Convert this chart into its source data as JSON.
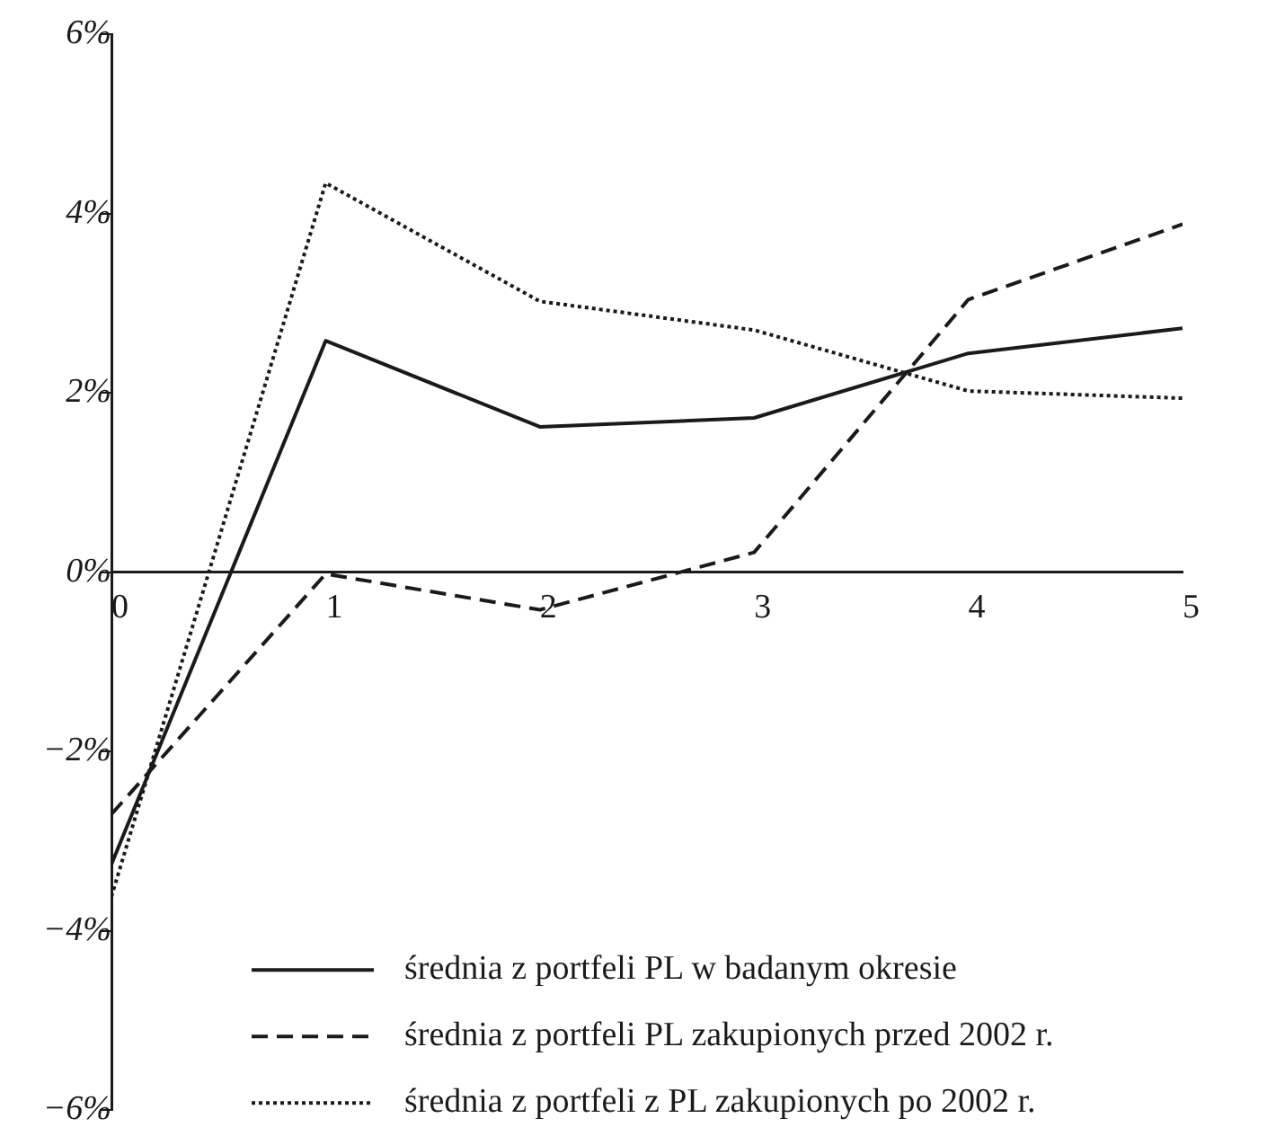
{
  "chart_data": {
    "type": "line",
    "x": [
      0,
      1,
      2,
      3,
      4,
      5
    ],
    "xlim": [
      0,
      5
    ],
    "xticks": [
      0,
      1,
      2,
      3,
      4,
      5
    ],
    "ylim": [
      -6,
      6
    ],
    "yticks": [
      {
        "value": -6,
        "label": "−6%"
      },
      {
        "value": -4,
        "label": "−4%"
      },
      {
        "value": -2,
        "label": "−2%"
      },
      {
        "value": 0,
        "label": "0%"
      },
      {
        "value": 2,
        "label": "2%"
      },
      {
        "value": 4,
        "label": "4%"
      },
      {
        "value": 6,
        "label": "6%"
      }
    ],
    "grid": false,
    "legend": "bottom right",
    "marker": "none",
    "series": [
      {
        "name": "średnia z portfeli PL w badanym okresie",
        "color": "#1a1a1a",
        "line_style": "solid",
        "values": [
          -3.26,
          2.58,
          1.62,
          1.72,
          2.44,
          2.72
        ]
      },
      {
        "name": "średnia z portfeli PL zakupionych przed 2002 r.",
        "color": "#1a1a1a",
        "line_style": "dashed",
        "values": [
          -2.7,
          -0.02,
          -0.42,
          0.22,
          3.04,
          3.88
        ]
      },
      {
        "name": "średnia z portfeli z PL zakupionych po 2002 r.",
        "color": "#1a1a1a",
        "line_style": "dotted",
        "values": [
          -3.62,
          4.34,
          3.02,
          2.7,
          2.02,
          1.94
        ]
      }
    ]
  }
}
